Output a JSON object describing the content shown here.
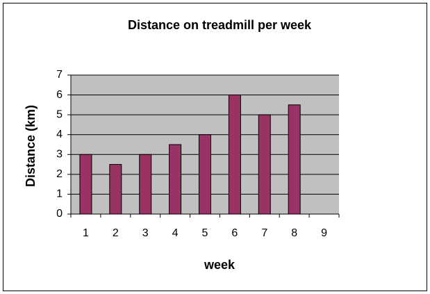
{
  "chart_data": {
    "type": "bar",
    "title": "Distance on treadmill per week",
    "x_label": "week",
    "y_label": "Distance (km)",
    "categories": [
      "1",
      "2",
      "3",
      "4",
      "5",
      "6",
      "7",
      "8",
      "9"
    ],
    "values": [
      3,
      2.5,
      3,
      3.5,
      4,
      6,
      5,
      5.5,
      null
    ],
    "color": "#993366",
    "plot_background": "#c0c0c0",
    "ylim": [
      0,
      7
    ],
    "yticks": [
      0,
      1,
      2,
      3,
      4,
      5,
      6,
      7
    ],
    "grid": true
  }
}
